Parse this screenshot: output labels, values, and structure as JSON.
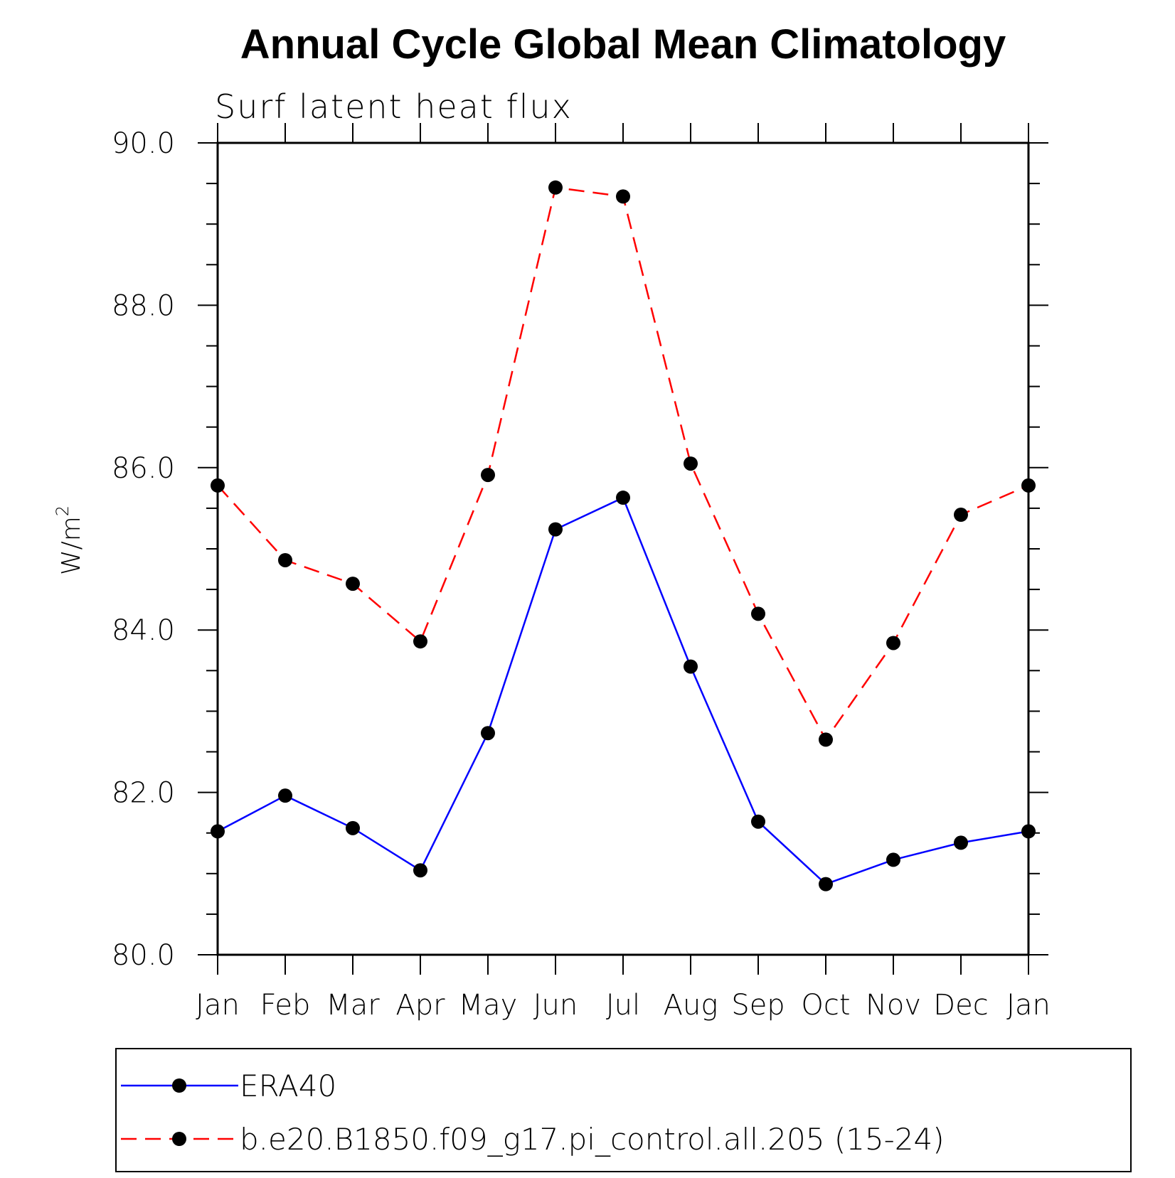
{
  "chart_data": {
    "type": "line",
    "title": "Annual Cycle Global Mean Climatology",
    "subtitle": "Surf latent heat flux",
    "ylabel": "W/m",
    "ylabel_superscript": "2",
    "categories": [
      "Jan",
      "Feb",
      "Mar",
      "Apr",
      "May",
      "Jun",
      "Jul",
      "Aug",
      "Sep",
      "Oct",
      "Nov",
      "Dec",
      "Jan"
    ],
    "yticks": [
      "80.0",
      "82.0",
      "84.0",
      "86.0",
      "88.0",
      "90.0"
    ],
    "ylim": [
      80,
      90
    ],
    "grid": false,
    "legend_position": "bottom",
    "series": [
      {
        "name": "ERA40",
        "color": "#0000ff",
        "line_style": "solid",
        "marker": "filled-circle",
        "values": [
          81.52,
          81.96,
          81.56,
          81.04,
          82.73,
          85.24,
          85.63,
          83.55,
          81.64,
          80.87,
          81.17,
          81.38,
          81.52
        ]
      },
      {
        "name": "b.e20.B1850.f09_g17.pi_control.all.205 (15-24)",
        "color": "#ff0000",
        "line_style": "dashed",
        "marker": "filled-circle",
        "values": [
          85.78,
          84.86,
          84.57,
          83.86,
          85.91,
          89.45,
          89.34,
          86.05,
          84.2,
          82.65,
          83.84,
          85.42,
          85.78
        ]
      }
    ]
  }
}
